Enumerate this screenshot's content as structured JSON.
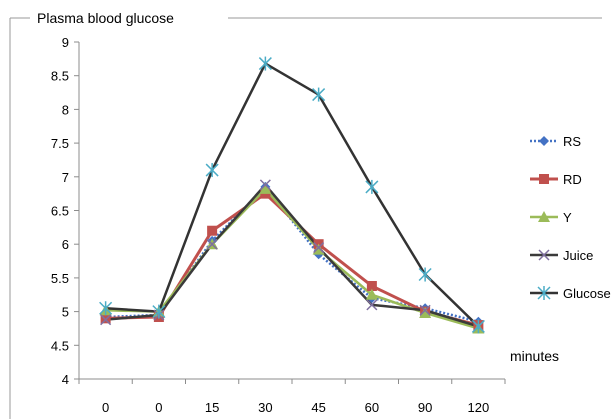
{
  "chart_data": {
    "type": "line",
    "title": "Plasma blood glucose",
    "xlabel": "minutes",
    "ylabel": "",
    "categories": [
      "0",
      "0",
      "15",
      "30",
      "45",
      "60",
      "90",
      "120"
    ],
    "ylim": [
      4,
      9
    ],
    "yticks": [
      "4",
      "4.5",
      "5",
      "5.5",
      "6",
      "6.5",
      "7",
      "7.5",
      "8",
      "8.5",
      "9"
    ],
    "grid": false,
    "legend_position": "right",
    "series": [
      {
        "name": "RS",
        "color": "#4472C4",
        "marker": "diamond",
        "dashed": true,
        "values": [
          4.92,
          4.95,
          6.05,
          6.85,
          5.85,
          5.2,
          5.05,
          4.85
        ]
      },
      {
        "name": "RD",
        "color": "#C0504D",
        "marker": "square",
        "dashed": false,
        "values": [
          4.9,
          4.92,
          6.2,
          6.75,
          6.0,
          5.38,
          5.0,
          4.8
        ]
      },
      {
        "name": "Y",
        "color": "#9BBB59",
        "marker": "triangle",
        "dashed": false,
        "values": [
          5.02,
          5.0,
          6.0,
          6.82,
          5.92,
          5.25,
          4.98,
          4.75
        ]
      },
      {
        "name": "Juice",
        "color": "#7F6F9F",
        "marker": "x",
        "dashed": false,
        "line_color": "#3a3a3a",
        "values": [
          4.88,
          4.95,
          6.0,
          6.88,
          5.95,
          5.1,
          5.02,
          4.78
        ]
      },
      {
        "name": "Glucose",
        "color": "#4BACC6",
        "marker": "star",
        "dashed": false,
        "line_color": "#333333",
        "values": [
          5.05,
          5.0,
          7.1,
          8.68,
          8.22,
          6.85,
          5.55,
          4.78
        ]
      }
    ]
  }
}
